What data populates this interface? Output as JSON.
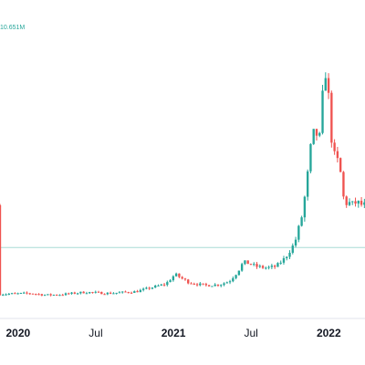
{
  "chart_data": {
    "type": "candlestick",
    "volume_label": "10.651M",
    "x_ticks": [
      {
        "label": "2020",
        "t": 2020.0,
        "bold": true
      },
      {
        "label": "Jul",
        "t": 2020.5,
        "bold": false
      },
      {
        "label": "2021",
        "t": 2021.0,
        "bold": true
      },
      {
        "label": "Jul",
        "t": 2021.5,
        "bold": false
      },
      {
        "label": "2022",
        "t": 2022.0,
        "bold": true
      }
    ],
    "reference_line_level": 0.215,
    "colors": {
      "up": "#26a69a",
      "down": "#ef5350",
      "axis": "#e0e3eb",
      "text": "#131722",
      "reference_line": "#a8dcd6"
    }
  }
}
